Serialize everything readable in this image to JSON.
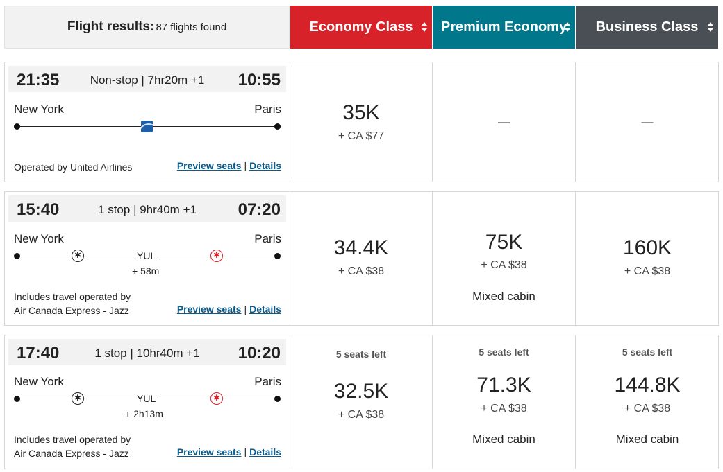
{
  "header": {
    "results_title": "Flight results:",
    "results_count": "87 flights found",
    "cabins": [
      "Economy Class",
      "Premium Economy",
      "Business Class"
    ],
    "colors": {
      "economy": "#d8222a",
      "premium": "#00778a",
      "business": "#4a4f55"
    }
  },
  "flights": [
    {
      "depart": "21:35",
      "stops": "Non-stop | 7hr20m +1",
      "arrive": "10:55",
      "from": "New York",
      "to": "Paris",
      "operated": "Operated by United Airlines",
      "preview": "Preview seats",
      "details": "Details",
      "economy": {
        "points": "35K",
        "tax": "+ CA $77"
      },
      "premium": {
        "dash": "—"
      },
      "business": {
        "dash": "—"
      }
    },
    {
      "depart": "15:40",
      "stops": "1 stop | 9hr40m +1",
      "arrive": "07:20",
      "from": "New York",
      "to": "Paris",
      "via": "YUL",
      "layover": "+ 58m",
      "operated_1": "Includes travel operated by",
      "operated_2": "Air Canada Express - Jazz",
      "preview": "Preview seats",
      "details": "Details",
      "economy": {
        "points": "34.4K",
        "tax": "+ CA $38"
      },
      "premium": {
        "points": "75K",
        "tax": "+ CA $38",
        "note": "Mixed cabin"
      },
      "business": {
        "points": "160K",
        "tax": "+ CA $38"
      }
    },
    {
      "depart": "17:40",
      "stops": "1 stop | 10hr40m +1",
      "arrive": "10:20",
      "from": "New York",
      "to": "Paris",
      "via": "YUL",
      "layover": "+ 2h13m",
      "operated_1": "Includes travel operated by",
      "operated_2": "Air Canada Express - Jazz",
      "preview": "Preview seats",
      "details": "Details",
      "economy": {
        "seats": "5 seats left",
        "points": "32.5K",
        "tax": "+ CA $38"
      },
      "premium": {
        "seats": "5 seats left",
        "points": "71.3K",
        "tax": "+ CA $38",
        "note": "Mixed cabin"
      },
      "business": {
        "seats": "5 seats left",
        "points": "144.8K",
        "tax": "+ CA $38",
        "note": "Mixed cabin"
      }
    }
  ],
  "icons": {
    "united": "united-airlines-globe-icon",
    "aircanada": "maple-leaf-icon",
    "sort": "sort-arrows-icon"
  }
}
